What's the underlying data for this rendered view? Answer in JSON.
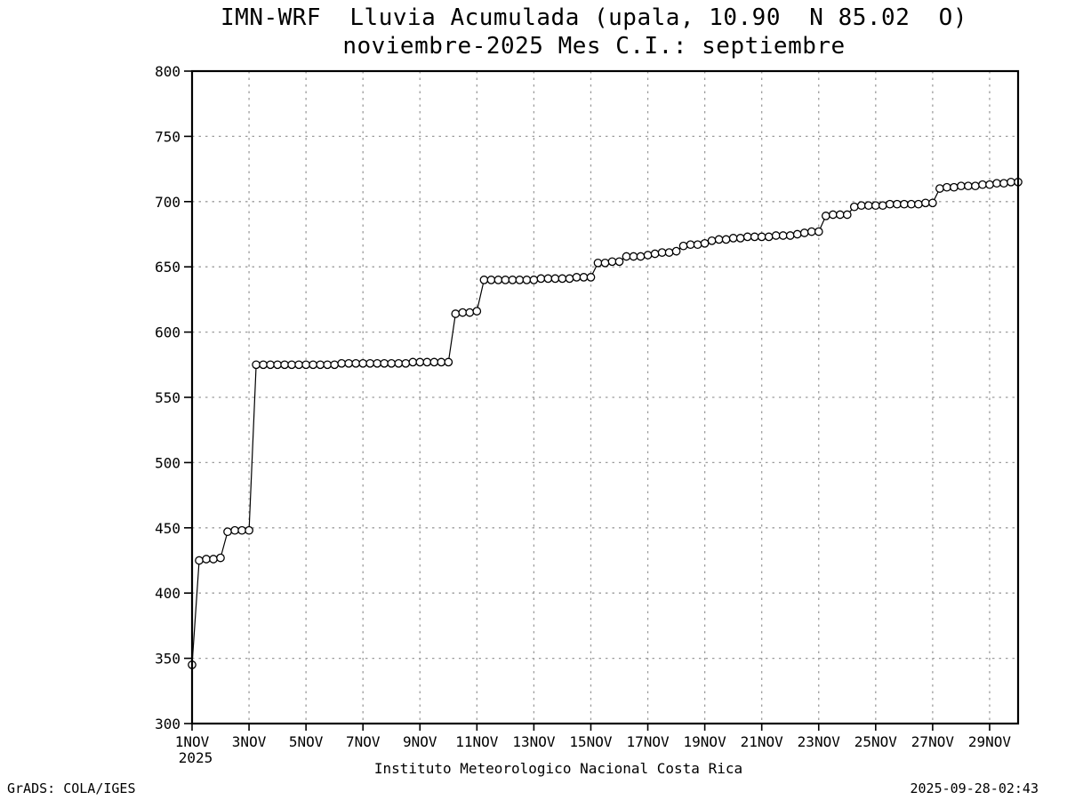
{
  "header": {
    "title_line1": "IMN-WRF  Lluvia Acumulada (upala, 10.90  N 85.02  O)",
    "title_line2": "noviembre-2025 Mes C.I.: septiembre"
  },
  "footer": {
    "caption": "Instituto Meteorologico Nacional Costa Rica",
    "grads_credit": "GrADS: COLA/IGES",
    "timestamp": "2025-09-28-02:43"
  },
  "chart_data": {
    "type": "line",
    "title": "IMN-WRF Lluvia Acumulada (upala, 10.90 N 85.02 O)",
    "subtitle": "noviembre-2025 Mes C.I.: septiembre",
    "xlabel": "",
    "ylabel": "",
    "legend": "none",
    "grid": true,
    "marker": "open-circle",
    "line_color": "#000000",
    "grid_color": "#9c9c9c",
    "background": "#ffffff",
    "ylim": [
      300,
      800
    ],
    "yticks": [
      300,
      350,
      400,
      450,
      500,
      550,
      600,
      650,
      700,
      750,
      800
    ],
    "xlim_days": [
      1,
      30
    ],
    "x_start_day": 1,
    "x_step_days": 0.25,
    "x_year_label": "2025",
    "xticks": [
      {
        "day": 1,
        "label": "1NOV"
      },
      {
        "day": 3,
        "label": "3NOV"
      },
      {
        "day": 5,
        "label": "5NOV"
      },
      {
        "day": 7,
        "label": "7NOV"
      },
      {
        "day": 9,
        "label": "9NOV"
      },
      {
        "day": 11,
        "label": "11NOV"
      },
      {
        "day": 13,
        "label": "13NOV"
      },
      {
        "day": 15,
        "label": "15NOV"
      },
      {
        "day": 17,
        "label": "17NOV"
      },
      {
        "day": 19,
        "label": "19NOV"
      },
      {
        "day": 21,
        "label": "21NOV"
      },
      {
        "day": 23,
        "label": "23NOV"
      },
      {
        "day": 25,
        "label": "25NOV"
      },
      {
        "day": 27,
        "label": "27NOV"
      },
      {
        "day": 29,
        "label": "29NOV"
      }
    ],
    "values": [
      345,
      425,
      426,
      426,
      427,
      447,
      448,
      448,
      448,
      575,
      575,
      575,
      575,
      575,
      575,
      575,
      575,
      575,
      575,
      575,
      575,
      576,
      576,
      576,
      576,
      576,
      576,
      576,
      576,
      576,
      576,
      577,
      577,
      577,
      577,
      577,
      577,
      614,
      615,
      615,
      616,
      640,
      640,
      640,
      640,
      640,
      640,
      640,
      640,
      641,
      641,
      641,
      641,
      641,
      642,
      642,
      642,
      653,
      653,
      654,
      654,
      658,
      658,
      658,
      659,
      660,
      661,
      661,
      662,
      666,
      667,
      667,
      668,
      670,
      671,
      671,
      672,
      672,
      673,
      673,
      673,
      673,
      674,
      674,
      674,
      675,
      676,
      677,
      677,
      689,
      690,
      690,
      690,
      696,
      697,
      697,
      697,
      697,
      698,
      698,
      698,
      698,
      698,
      699,
      699,
      710,
      711,
      711,
      712,
      712,
      712,
      713,
      713,
      714,
      714,
      715,
      715
    ]
  }
}
